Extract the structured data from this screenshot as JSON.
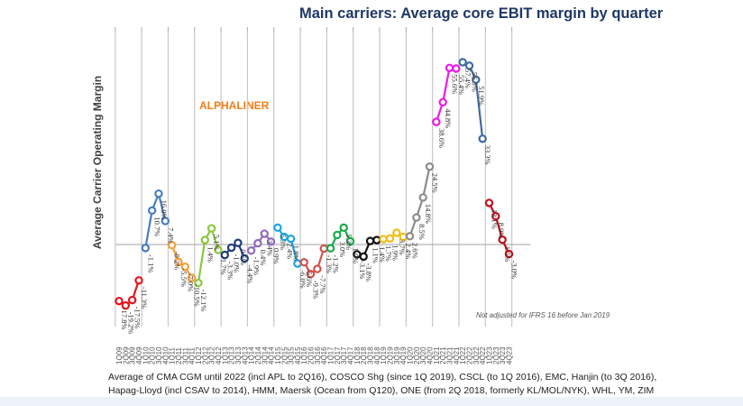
{
  "chart_data": {
    "type": "line",
    "title": "Main carriers: Average core EBIT margin by quarter",
    "xlabel": "",
    "ylabel": "Average Carrier Operating Margin",
    "ylim": [
      -25,
      65
    ],
    "grid": "vertical lines per year",
    "watermark": "ALPHALINER",
    "annotation": "Not adjusted for IFRS 16 before Jan 2019",
    "categories": [
      "1Q09",
      "2Q09",
      "3Q09",
      "4Q09",
      "1Q10",
      "2Q10",
      "3Q10",
      "4Q10",
      "1Q11",
      "2Q11",
      "3Q11",
      "4Q11",
      "1Q12",
      "2Q12",
      "3Q12",
      "4Q12",
      "1Q13",
      "2Q13",
      "3Q13",
      "4Q13",
      "1Q14",
      "2Q14",
      "3Q14",
      "4Q14",
      "1Q15",
      "2Q15",
      "3Q15",
      "4Q15",
      "1Q16",
      "2Q16",
      "3Q16",
      "4Q16",
      "1Q17",
      "2Q17",
      "3Q17",
      "4Q17",
      "1Q18",
      "2Q18",
      "3Q18",
      "4Q18",
      "1Q19",
      "2Q19",
      "3Q19",
      "4Q19",
      "1Q20",
      "2Q20",
      "3Q20",
      "4Q20",
      "1Q21",
      "2Q21",
      "3Q21",
      "4Q21",
      "1Q22",
      "2Q22",
      "3Q22",
      "4Q22",
      "1Q23",
      "2Q23",
      "3Q23",
      "4Q23"
    ],
    "series": [
      {
        "name": "2009",
        "color": "#e8141c",
        "values": [
          -17.8,
          -19.2,
          -17.5,
          -11.3
        ],
        "labels": [
          "-17.8%",
          "-19.2%",
          "-17.5%",
          "-11.3%"
        ]
      },
      {
        "name": "2010",
        "color": "#4a7ebb",
        "values": [
          -1.1,
          10.7,
          16.0,
          7.4
        ],
        "labels": [
          "-1.1%",
          "10.7%",
          "16.0%",
          "7.4%"
        ]
      },
      {
        "name": "2011",
        "color": "#f59d3d",
        "values": [
          -0.2,
          -5.5,
          -7.0,
          -10.5
        ],
        "labels": [
          "-0.2%",
          "-5.5%",
          "-7.0%",
          "-10.5%"
        ]
      },
      {
        "name": "2012",
        "color": "#8dc63f",
        "values": [
          -12.1,
          1.4,
          5.1,
          -1.7
        ],
        "labels": [
          "-12.1%",
          "1.4%",
          "5.1%",
          "-1.7%"
        ]
      },
      {
        "name": "2013",
        "color": "#1f3d7a",
        "values": [
          -3.3,
          -1.0,
          0.5,
          -4.4
        ],
        "labels": [
          "-3.3%",
          "-1.0%",
          "0.5%",
          "-4.4%"
        ]
      },
      {
        "name": "2014",
        "color": "#8e6bbf",
        "values": [
          -1.9,
          0.4,
          3.4,
          0.9
        ],
        "labels": [
          "-1.9%",
          "0.4%",
          "3.4%",
          "0.9%"
        ]
      },
      {
        "name": "2015",
        "color": "#1aa6e0",
        "values": [
          5.3,
          2.4,
          1.8,
          -6.0
        ],
        "labels": [
          "5.3%",
          "2.4%",
          "1.8%",
          "-6.0%"
        ]
      },
      {
        "name": "2016",
        "color": "#d1524d",
        "values": [
          -5.6,
          -9.3,
          -7.7,
          -1.3
        ],
        "labels": [
          "-5.6%",
          "-9.3%",
          "-7.7%",
          "-1.3%"
        ]
      },
      {
        "name": "2017",
        "color": "#1aaa4a",
        "values": [
          -1.2,
          3.0,
          5.3,
          1.0
        ],
        "labels": [
          "-1.2%",
          "3.0%",
          "5.3%",
          "1.0%"
        ]
      },
      {
        "name": "2018",
        "color": "#111111",
        "values": [
          -3.1,
          -3.8,
          1.1,
          1.4
        ],
        "labels": [
          "-3.1%",
          "-3.8%",
          "1.1%",
          "1.4%"
        ]
      },
      {
        "name": "2019",
        "color": "#f2bd14",
        "values": [
          1.7,
          1.9,
          3.7,
          2.4
        ],
        "labels": [
          "1.7%",
          "1.9%",
          "3.7%",
          "2.4%"
        ]
      },
      {
        "name": "2020",
        "color": "#8c8c8c",
        "values": [
          2.6,
          8.5,
          14.8,
          24.5
        ],
        "labels": [
          "2.6%",
          "8.5%",
          "14.8%",
          "24.5%"
        ]
      },
      {
        "name": "2021",
        "color": "#ee1ae6",
        "values": [
          38.6,
          44.8,
          55.6,
          55.4
        ],
        "labels": [
          "38.6%",
          "44.8%",
          "55.6%",
          "55.4%"
        ]
      },
      {
        "name": "2022",
        "color": "#3f6aa1",
        "values": [
          57.4,
          56.3,
          51.9,
          33.3
        ],
        "labels": [
          "57.4%",
          "56.3%",
          "51.9%",
          "33.3%"
        ]
      },
      {
        "name": "2023",
        "color": "#c0101a",
        "values": [
          13.1,
          8.9,
          1.5,
          -3.0
        ],
        "labels": [
          "13.1%",
          "8.9%",
          "1.5%",
          "-3.0%"
        ]
      }
    ]
  },
  "footnote": {
    "line1": "Average of CMA CGM until 2022 (incl APL to 2Q16), COSCO Shg (since 1Q 2019), CSCL (to 1Q 2016), EMC, Hanjin (to 3Q 2016),",
    "line2": "Hapag-Lloyd (incl CSAV to 2014), HMM, Maersk (Ocean from Q120), ONE (from 2Q 2018, formerly KL/MOL/NYK), WHL, YM, ZIM"
  }
}
